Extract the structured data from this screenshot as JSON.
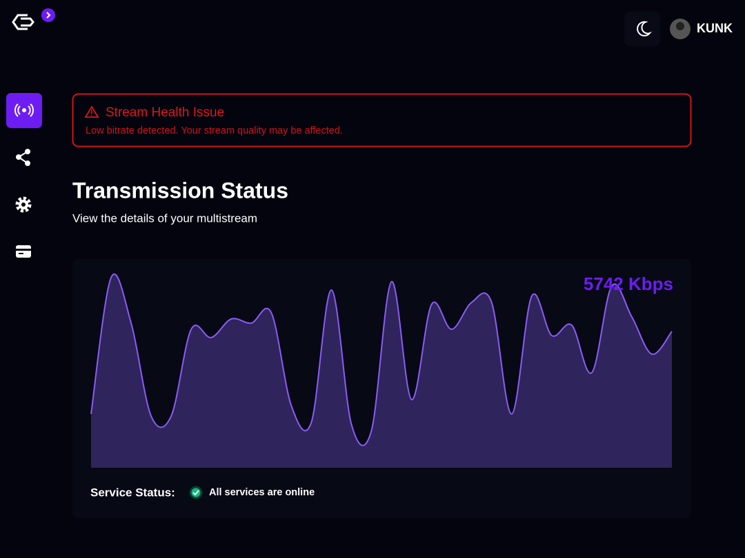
{
  "header": {
    "user": "KUNK"
  },
  "alert": {
    "title": "Stream Health Issue",
    "message": "Low bitrate detected. Your stream quality may be affected."
  },
  "page": {
    "title": "Transmission Status",
    "subtitle": "View the details of your multistream"
  },
  "chart_data": {
    "type": "area",
    "value_label": "5742 Kbps",
    "values": [
      26,
      92,
      70,
      25,
      25,
      67,
      63,
      72,
      70,
      75,
      30,
      22,
      86,
      21,
      18,
      90,
      33,
      79,
      67,
      80,
      80,
      26,
      83,
      64,
      69,
      46,
      88,
      73,
      55,
      66
    ],
    "ylim": [
      0,
      100
    ],
    "color": "#30245c",
    "line_color": "#8b5cf6"
  },
  "status": {
    "label": "Service Status:",
    "text": "All services are online"
  }
}
